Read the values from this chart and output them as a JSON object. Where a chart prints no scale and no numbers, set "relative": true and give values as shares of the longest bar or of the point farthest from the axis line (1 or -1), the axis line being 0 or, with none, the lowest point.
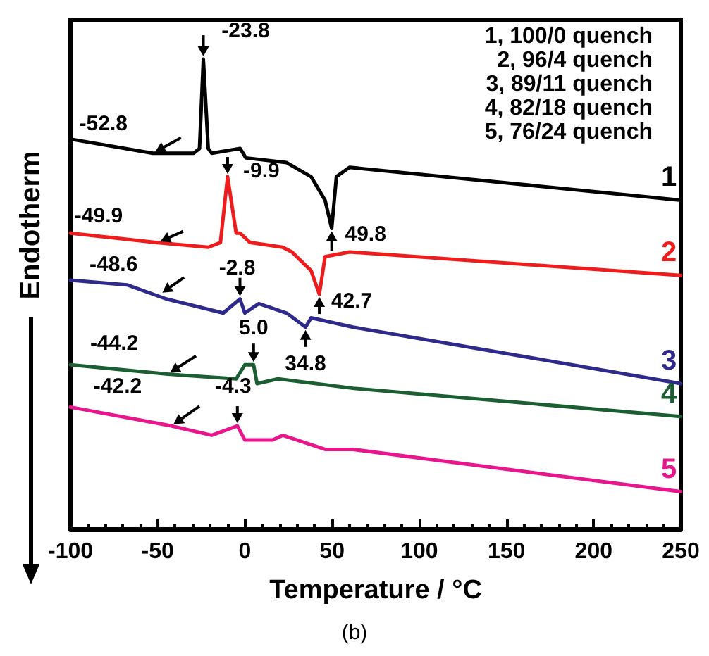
{
  "chart_data": {
    "type": "line",
    "relative": true,
    "xlabel": "Temperature / °C",
    "ylabel": "Endotherm",
    "xlim": [
      -100,
      250
    ],
    "xticks": [
      -100,
      -50,
      0,
      50,
      100,
      150,
      200,
      250
    ],
    "grid": false,
    "legend": false,
    "marker": "none",
    "line_style": "solid",
    "series": [
      {
        "name": "1",
        "color": "#000000",
        "x": [
          -100,
          -52.8,
          -29.4,
          -26,
          -23.8,
          -21,
          -19,
          -2.7,
          0.6,
          24,
          38,
          46,
          49.8,
          52.5,
          60,
          250
        ],
        "values": [
          0.83,
          0.8,
          0.8,
          0.81,
          1,
          0.81,
          0.8,
          0.81,
          0.79,
          0.78,
          0.75,
          0.7,
          0.64,
          0.75,
          0.77,
          0.7
        ]
      },
      {
        "name": "2",
        "color": "#ee1c1c",
        "x": [
          -100,
          -51,
          -21,
          -14,
          -9.9,
          -5,
          -2.7,
          3,
          21.7,
          27,
          38,
          42.7,
          46,
          60,
          250
        ],
        "values": [
          0.63,
          0.61,
          0.6,
          0.61,
          0.75,
          0.63,
          0.63,
          0.61,
          0.6,
          0.59,
          0.55,
          0.5,
          0.58,
          0.59,
          0.54
        ]
      },
      {
        "name": "3",
        "color": "#2e2a8c",
        "x": [
          -100,
          -67.6,
          -45,
          -12.4,
          -2.8,
          0,
          8,
          24,
          34.8,
          38,
          62,
          250
        ],
        "values": [
          0.53,
          0.52,
          0.49,
          0.46,
          0.49,
          0.46,
          0.48,
          0.46,
          0.43,
          0.45,
          0.43,
          0.31
        ]
      },
      {
        "name": "4",
        "color": "#1a5e32",
        "x": [
          -100,
          -44.2,
          -5,
          0,
          5,
          7,
          19,
          62,
          250
        ],
        "values": [
          0.35,
          0.33,
          0.32,
          0.35,
          0.35,
          0.31,
          0.32,
          0.3,
          0.24
        ]
      },
      {
        "name": "5",
        "color": "#e8158c",
        "x": [
          -100,
          -42.2,
          -19,
          -4.3,
          0,
          16,
          21.7,
          46,
          62,
          250
        ],
        "values": [
          0.26,
          0.22,
          0.2,
          0.22,
          0.19,
          0.19,
          0.2,
          0.17,
          0.17,
          0.08
        ]
      }
    ],
    "annotations": [
      {
        "text": "-52.8",
        "x": -52.8,
        "y": 0.8
      },
      {
        "text": "-23.8",
        "x": -23.8,
        "y": 1
      },
      {
        "text": "-9.9",
        "x": -9.9,
        "y": 0.75
      },
      {
        "text": "-49.9",
        "x": -49.9,
        "y": 0.61
      },
      {
        "text": "49.8",
        "x": 49.8,
        "y": 0.64
      },
      {
        "text": "42.7",
        "x": 42.7,
        "y": 0.5
      },
      {
        "text": "-48.6",
        "x": -48.6,
        "y": 0.5
      },
      {
        "text": "-2.8",
        "x": -2.8,
        "y": 0.49
      },
      {
        "text": "34.8",
        "x": 34.8,
        "y": 0.43
      },
      {
        "text": "-44.2",
        "x": -44.2,
        "y": 0.33
      },
      {
        "text": "5.0",
        "x": 5,
        "y": 0.35
      },
      {
        "text": "-42.2",
        "x": -42.2,
        "y": 0.22
      },
      {
        "text": "-4.3",
        "x": -4.3,
        "y": 0.22
      },
      "1, 100/0 quench",
      "2, 96/4 quench",
      "3, 89/11 quench",
      "4, 82/18 quench",
      "5, 76/24 quench",
      "(b)"
    ]
  }
}
